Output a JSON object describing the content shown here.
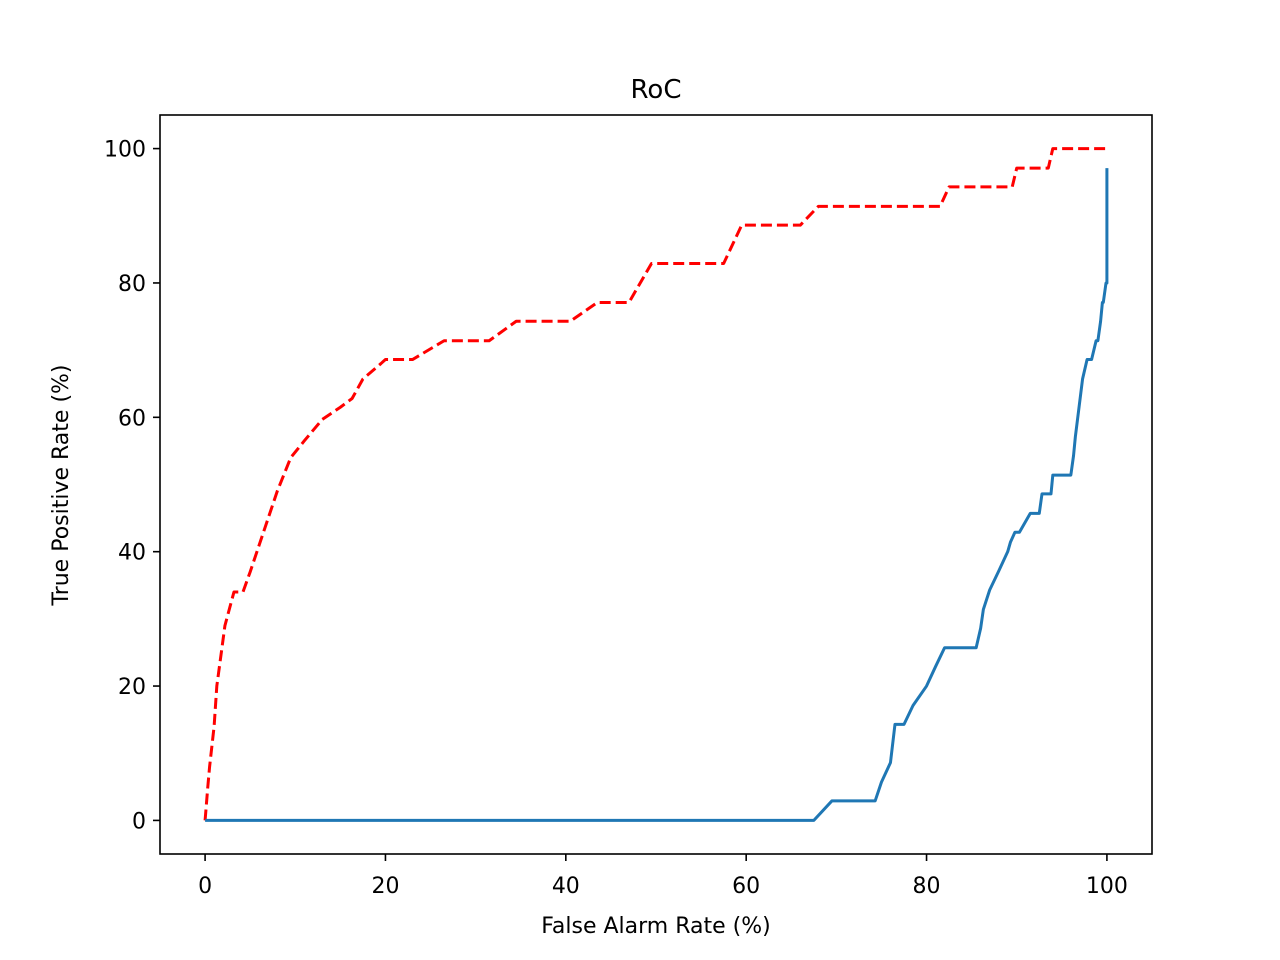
{
  "chart_data": {
    "type": "line",
    "title": "RoC",
    "xlabel": "False Alarm Rate (%)",
    "ylabel": "True Positive Rate (%)",
    "xlim": [
      -5,
      105
    ],
    "ylim": [
      -5,
      105
    ],
    "xticks": [
      0,
      20,
      40,
      60,
      80,
      100
    ],
    "yticks": [
      0,
      20,
      40,
      60,
      80,
      100
    ],
    "grid": false,
    "series": [
      {
        "color": "#ff0000",
        "style": "dashed",
        "x": [
          0,
          0.3,
          0.5,
          1.0,
          1.3,
          1.5,
          2.2,
          3.0,
          3.2,
          4.2,
          5.0,
          6.0,
          7.0,
          8.0,
          9.5,
          11.0,
          13.0,
          15.0,
          16.3,
          17.5,
          19.5,
          20.0,
          23.0,
          26.5,
          31.5,
          34.5,
          40.5,
          43.5,
          47.0,
          49.5,
          57.5,
          59.5,
          66.0,
          68.0,
          81.5,
          82.5,
          89.5,
          90.0,
          93.5,
          94.0,
          100.0
        ],
        "y": [
          0,
          5,
          8,
          14,
          20,
          22,
          29,
          33,
          34,
          34,
          37,
          41,
          45,
          49,
          54,
          56.5,
          59.7,
          61.5,
          62.8,
          65.7,
          68,
          68.6,
          68.6,
          71.4,
          71.4,
          74.3,
          74.3,
          77.1,
          77.1,
          82.9,
          82.9,
          88.6,
          88.6,
          91.4,
          91.4,
          94.3,
          94.3,
          97.1,
          97.1,
          100,
          100
        ]
      },
      {
        "color": "#1f77b4",
        "style": "solid",
        "x": [
          0,
          67.5,
          69.5,
          74.3,
          75.0,
          76.0,
          76.5,
          77.5,
          78.5,
          80.0,
          81.0,
          82.0,
          85.5,
          86.0,
          86.3,
          87.0,
          88.0,
          89.0,
          89.3,
          89.8,
          90.3,
          91.5,
          92.5,
          92.8,
          93.8,
          94.0,
          96.0,
          96.3,
          96.5,
          97.3,
          97.8,
          98.3,
          98.8,
          99.0,
          99.3,
          99.5,
          99.6,
          99.9,
          100.0,
          100.0
        ],
        "y": [
          0,
          0,
          2.9,
          2.9,
          5.7,
          8.6,
          14.3,
          14.3,
          17.1,
          20.0,
          22.9,
          25.7,
          25.7,
          28.6,
          31.4,
          34.3,
          37.1,
          40.0,
          41.4,
          42.9,
          42.9,
          45.7,
          45.7,
          48.6,
          48.6,
          51.4,
          51.4,
          54.3,
          57.1,
          65.7,
          68.6,
          68.6,
          71.4,
          71.4,
          74.3,
          77.1,
          77.1,
          80.0,
          80.0,
          97.1
        ]
      }
    ]
  }
}
